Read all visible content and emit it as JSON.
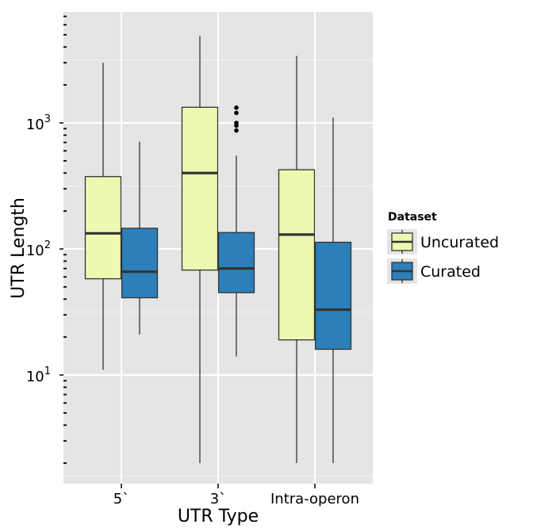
{
  "chart_data": {
    "type": "box",
    "xlabel": "UTR Type",
    "ylabel": "UTR Length",
    "y_scale": "log10",
    "y_tick_labels": [
      {
        "value": 10,
        "base": "10",
        "exp": "1"
      },
      {
        "value": 100,
        "base": "10",
        "exp": "2"
      },
      {
        "value": 1000,
        "base": "10",
        "exp": "3"
      }
    ],
    "categories": [
      "5`",
      "3`",
      "Intra-operon"
    ],
    "legend": {
      "title": "Dataset",
      "placement": "right",
      "entries": [
        "Uncurated",
        "Curated"
      ]
    },
    "colors": {
      "Uncurated": "#edf8b1",
      "Curated": "#2c7fb8",
      "panel": "#e5e5e5",
      "grid_major": "#ffffff",
      "grid_minor": "#f2f2f2"
    },
    "series": [
      {
        "name": "Uncurated",
        "boxes": [
          {
            "category": "5`",
            "whisker_low": 11,
            "q1": 58,
            "median": 133,
            "q3": 375,
            "whisker_high": 3000,
            "outliers": []
          },
          {
            "category": "3`",
            "whisker_low": 2,
            "q1": 68,
            "median": 400,
            "q3": 1330,
            "whisker_high": 4900,
            "outliers": []
          },
          {
            "category": "Intra-operon",
            "whisker_low": 2,
            "q1": 19,
            "median": 130,
            "q3": 425,
            "whisker_high": 3400,
            "outliers": []
          }
        ]
      },
      {
        "name": "Curated",
        "boxes": [
          {
            "category": "5`",
            "whisker_low": 21,
            "q1": 41,
            "median": 66,
            "q3": 146,
            "whisker_high": 710,
            "outliers": []
          },
          {
            "category": "3`",
            "whisker_low": 14,
            "q1": 45,
            "median": 70,
            "q3": 135,
            "whisker_high": 550,
            "outliers": [
              870,
              950,
              1000,
              1200,
              1320
            ]
          },
          {
            "category": "Intra-operon",
            "whisker_low": 2,
            "q1": 16,
            "median": 33,
            "q3": 113,
            "whisker_high": 1100,
            "outliers": []
          }
        ]
      }
    ]
  }
}
